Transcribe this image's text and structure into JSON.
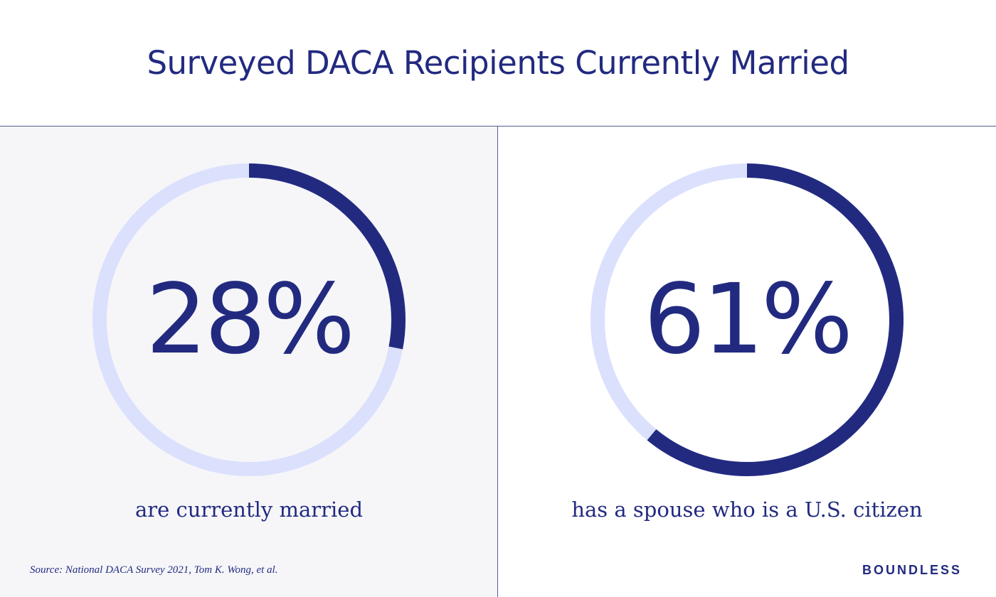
{
  "title": "Surveyed DACA Recipients Currently Married",
  "colors": {
    "accent": "#222a80",
    "track": "#dbe0fd",
    "left_panel_bg": "#f6f6f9",
    "divider": "#565b8e"
  },
  "chart_data": [
    {
      "type": "pie",
      "variant": "donut-progress",
      "value": 28,
      "unit": "%",
      "value_label": "28%",
      "caption": "are currently married"
    },
    {
      "type": "pie",
      "variant": "donut-progress",
      "value": 61,
      "unit": "%",
      "value_label": "61%",
      "caption": "has a spouse who is a U.S. citizen"
    }
  ],
  "footer": {
    "source": "Source: National DACA Survey 2021, Tom K. Wong, et al.",
    "brand": "BOUNDLESS"
  }
}
